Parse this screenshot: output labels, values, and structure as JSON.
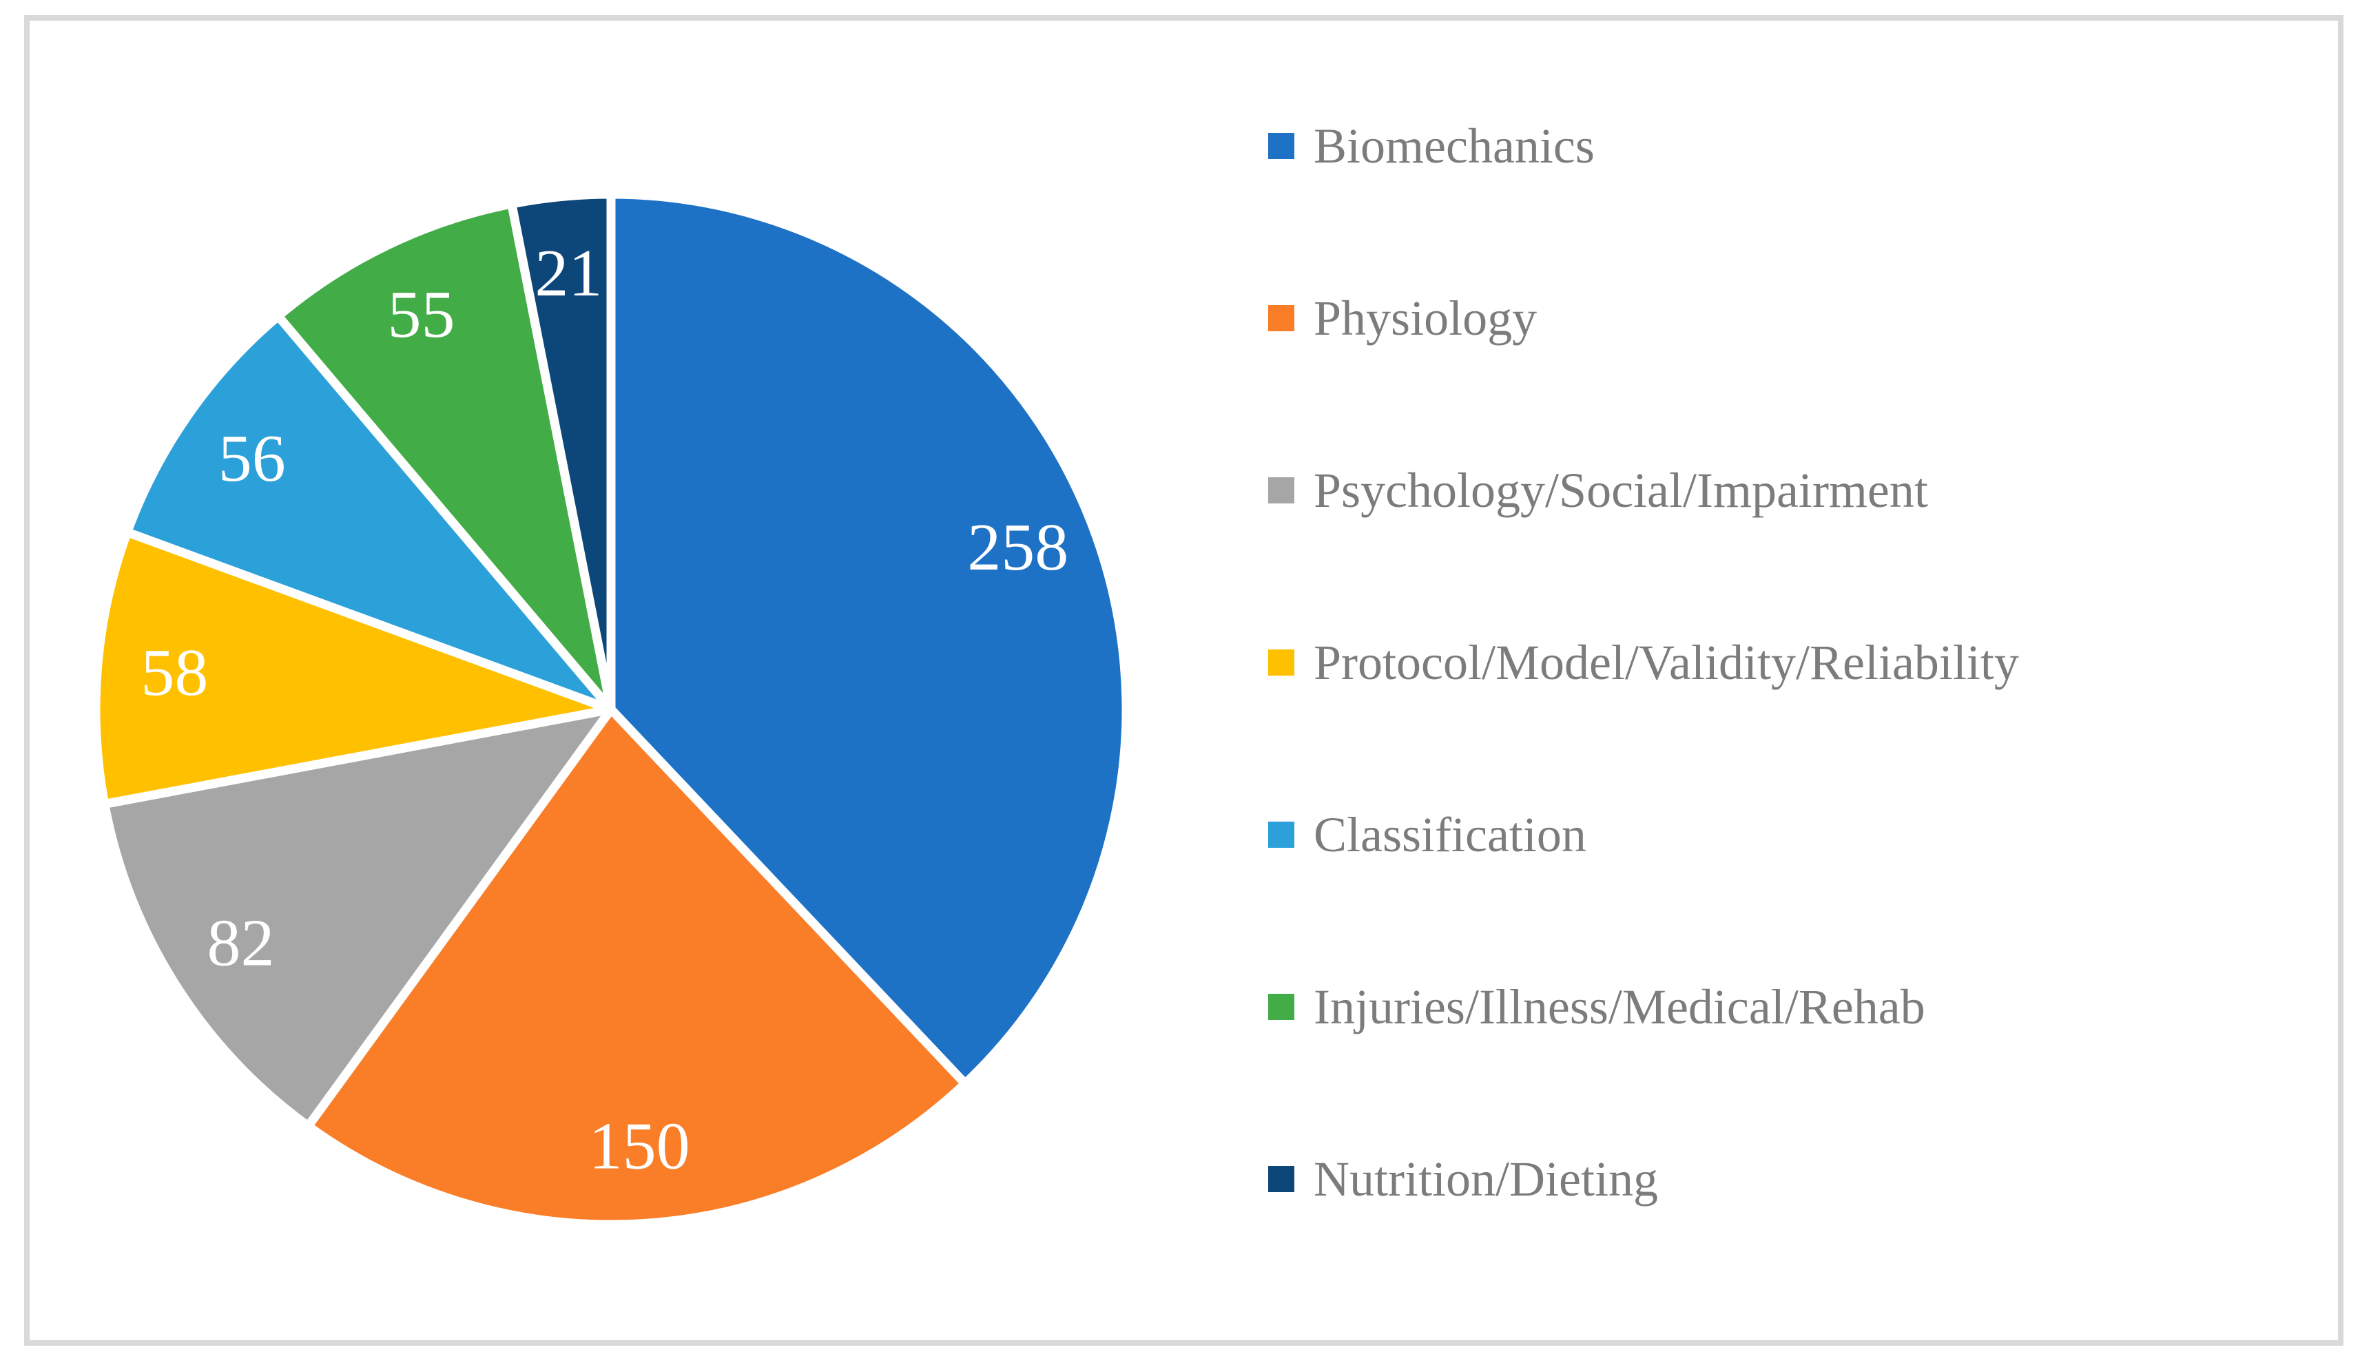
{
  "chart_data": {
    "type": "pie",
    "title": "",
    "start_angle_deg": 0,
    "direction": "clockwise",
    "legend_position": "right",
    "data_label_color": "#FFFFFF",
    "legend_text_color": "#7C7C7C",
    "chart_border_color": "#D9D9D9",
    "background_color": "#FFFFFF",
    "slices": [
      {
        "label": "Biomechanics",
        "value": 258,
        "color": "#1E72C5"
      },
      {
        "label": "Physiology",
        "value": 150,
        "color": "#FA7D28"
      },
      {
        "label": "Psychology/Social/Impairment",
        "value": 82,
        "color": "#A6A6A6"
      },
      {
        "label": "Protocol/Model/Validity/Reliability",
        "value": 58,
        "color": "#FFC000"
      },
      {
        "label": "Classification",
        "value": 56,
        "color": "#2BA0D9"
      },
      {
        "label": "Injuries/Illness/Medical/Rehab",
        "value": 55,
        "color": "#42AC47"
      },
      {
        "label": "Nutrition/Dieting",
        "value": 21,
        "color": "#0D4679"
      }
    ]
  }
}
